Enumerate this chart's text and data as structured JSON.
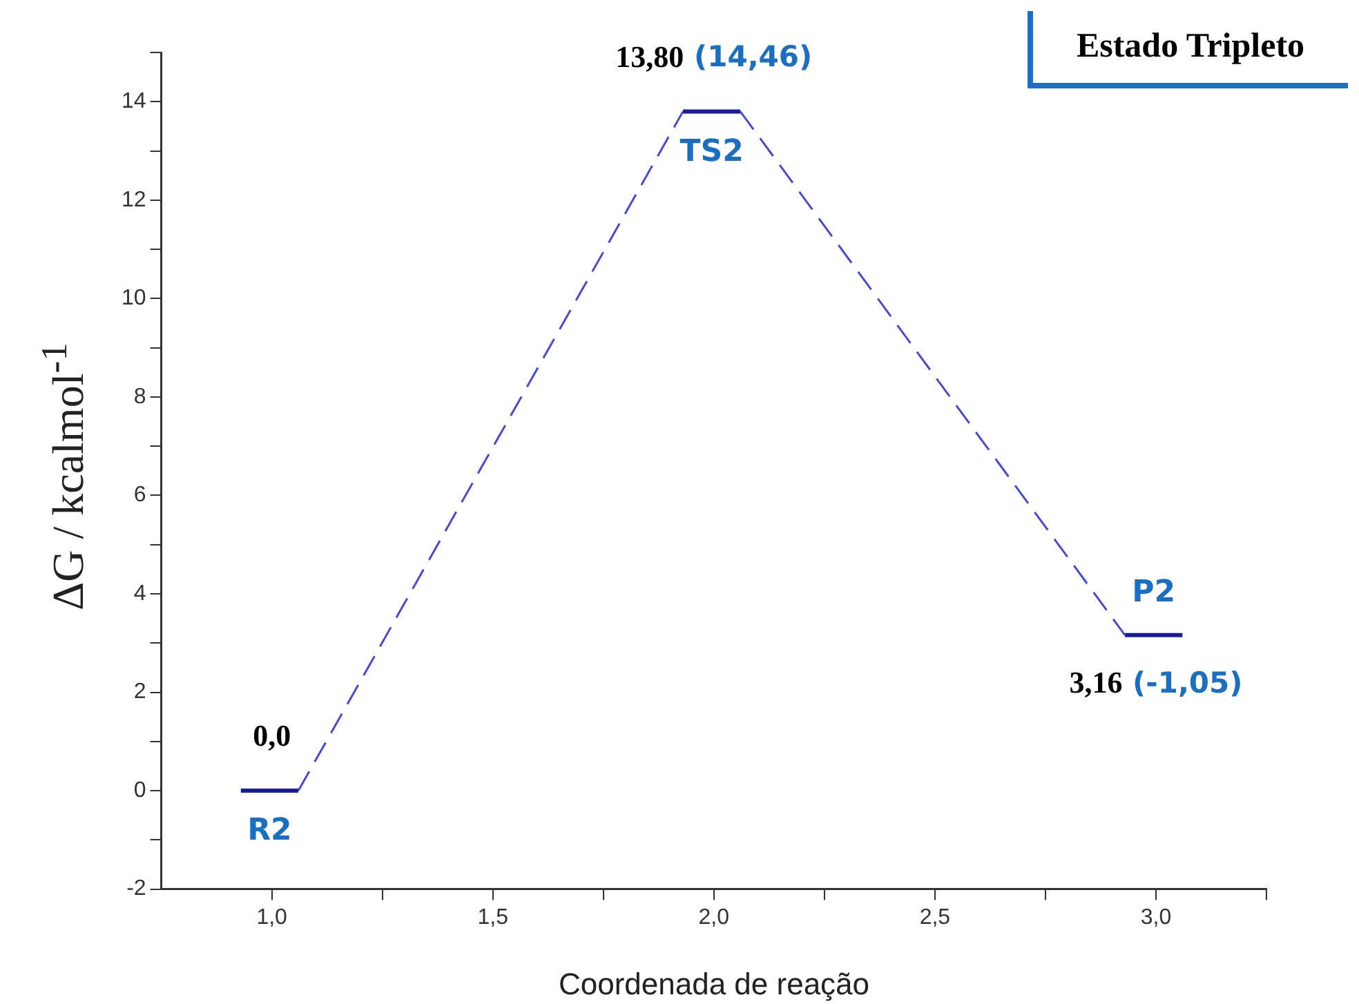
{
  "chart_data": {
    "type": "line",
    "title": "Estado Tripleto",
    "xlabel": "Coordenada de reação",
    "ylabel": "ΔG / kcalmol$^{-1}$",
    "series": [
      {
        "name": "R2",
        "color": "#1a1aa0",
        "x": [
          0.93,
          1.06
        ],
        "values": [
          0,
          0
        ],
        "line_style": "solid"
      },
      {
        "name": "TS2",
        "color": "#1a1aa0",
        "x": [
          1.93,
          2.06
        ],
        "values": [
          13.8,
          13.8
        ],
        "line_style": "solid"
      },
      {
        "name": "P2",
        "color": "#1a1aa0",
        "x": [
          2.93,
          3.06
        ],
        "values": [
          3.16,
          3.16
        ],
        "line_style": "solid"
      },
      {
        "color": "#4a4ad0",
        "x": [
          1.06,
          1.93
        ],
        "values": [
          0,
          13.8
        ],
        "line_style": "dashed"
      },
      {
        "color": "#4a4ad0",
        "x": [
          2.06,
          2.93
        ],
        "values": [
          13.8,
          3.16
        ],
        "line_style": "dashed"
      }
    ],
    "xlim": [
      0.75,
      3.25
    ],
    "xticks": [
      {
        "value": 1,
        "label": "1,0"
      },
      {
        "value": 1.25,
        "label": null
      },
      {
        "value": 1.5,
        "label": "1,5"
      },
      {
        "value": 1.75,
        "label": null
      },
      {
        "value": 2,
        "label": "2,0"
      },
      {
        "value": 2.25,
        "label": null
      },
      {
        "value": 2.5,
        "label": "2,5"
      },
      {
        "value": 2.75,
        "label": null
      },
      {
        "value": 3,
        "label": "3,0"
      },
      {
        "value": 3.25,
        "label": null
      }
    ],
    "ylim": [
      -2,
      15
    ],
    "yticks": [
      -2,
      {
        "value": -1,
        "label": null
      },
      0,
      {
        "value": 1,
        "label": null
      },
      2,
      {
        "value": 3,
        "label": null
      },
      4,
      {
        "value": 5,
        "label": null
      },
      6,
      {
        "value": 7,
        "label": null
      },
      8,
      {
        "value": 9,
        "label": null
      },
      10,
      {
        "value": 11,
        "label": null
      },
      12,
      {
        "value": 13,
        "label": null
      },
      14,
      {
        "value": 15,
        "label": null
      }
    ],
    "annotations": [
      {
        "text": "0,0",
        "x": 1.0,
        "y": 0
      },
      {
        "text": "13,80 (14,46)",
        "x": 2.0,
        "y": 13.8
      },
      {
        "text": "3,16 (-1,05)",
        "x": 3.0,
        "y": 3.16
      }
    ],
    "grid": false,
    "legend": false,
    "marker": "none"
  }
}
